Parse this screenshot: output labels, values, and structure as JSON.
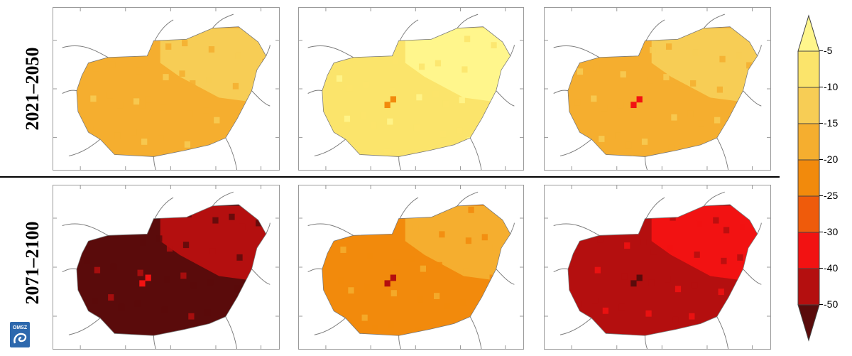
{
  "periods": [
    "2021–2050",
    "2071–2100"
  ],
  "legend": {
    "labels": [
      "-5",
      "-10",
      "-15",
      "-20",
      "-25",
      "-30",
      "-40",
      "-50"
    ],
    "colors": [
      "#fff68c",
      "#fbe46b",
      "#f7cd55",
      "#f5ae2f",
      "#f28a0c",
      "#ef5b0b",
      "#f21212",
      "#b40f0f",
      "#5a0b0b"
    ]
  },
  "logo": {
    "text": "OMSZ",
    "color": "#2d68ad"
  },
  "panels": [
    {
      "row": 0,
      "col": 0,
      "base": "#f5ae2f",
      "accent": "#f7cd55",
      "hot": "#f5ae2f"
    },
    {
      "row": 0,
      "col": 1,
      "base": "#fbe46b",
      "accent": "#fff68c",
      "hot": "#f28a0c"
    },
    {
      "row": 0,
      "col": 2,
      "base": "#f5ae2f",
      "accent": "#f7cd55",
      "hot": "#f21212"
    },
    {
      "row": 1,
      "col": 0,
      "base": "#5a0b0b",
      "accent": "#b40f0f",
      "hot": "#f21212"
    },
    {
      "row": 1,
      "col": 1,
      "base": "#f28a0c",
      "accent": "#f5ae2f",
      "hot": "#b40f0f"
    },
    {
      "row": 1,
      "col": 2,
      "base": "#b40f0f",
      "accent": "#f21212",
      "hot": "#5a0b0b"
    }
  ]
}
